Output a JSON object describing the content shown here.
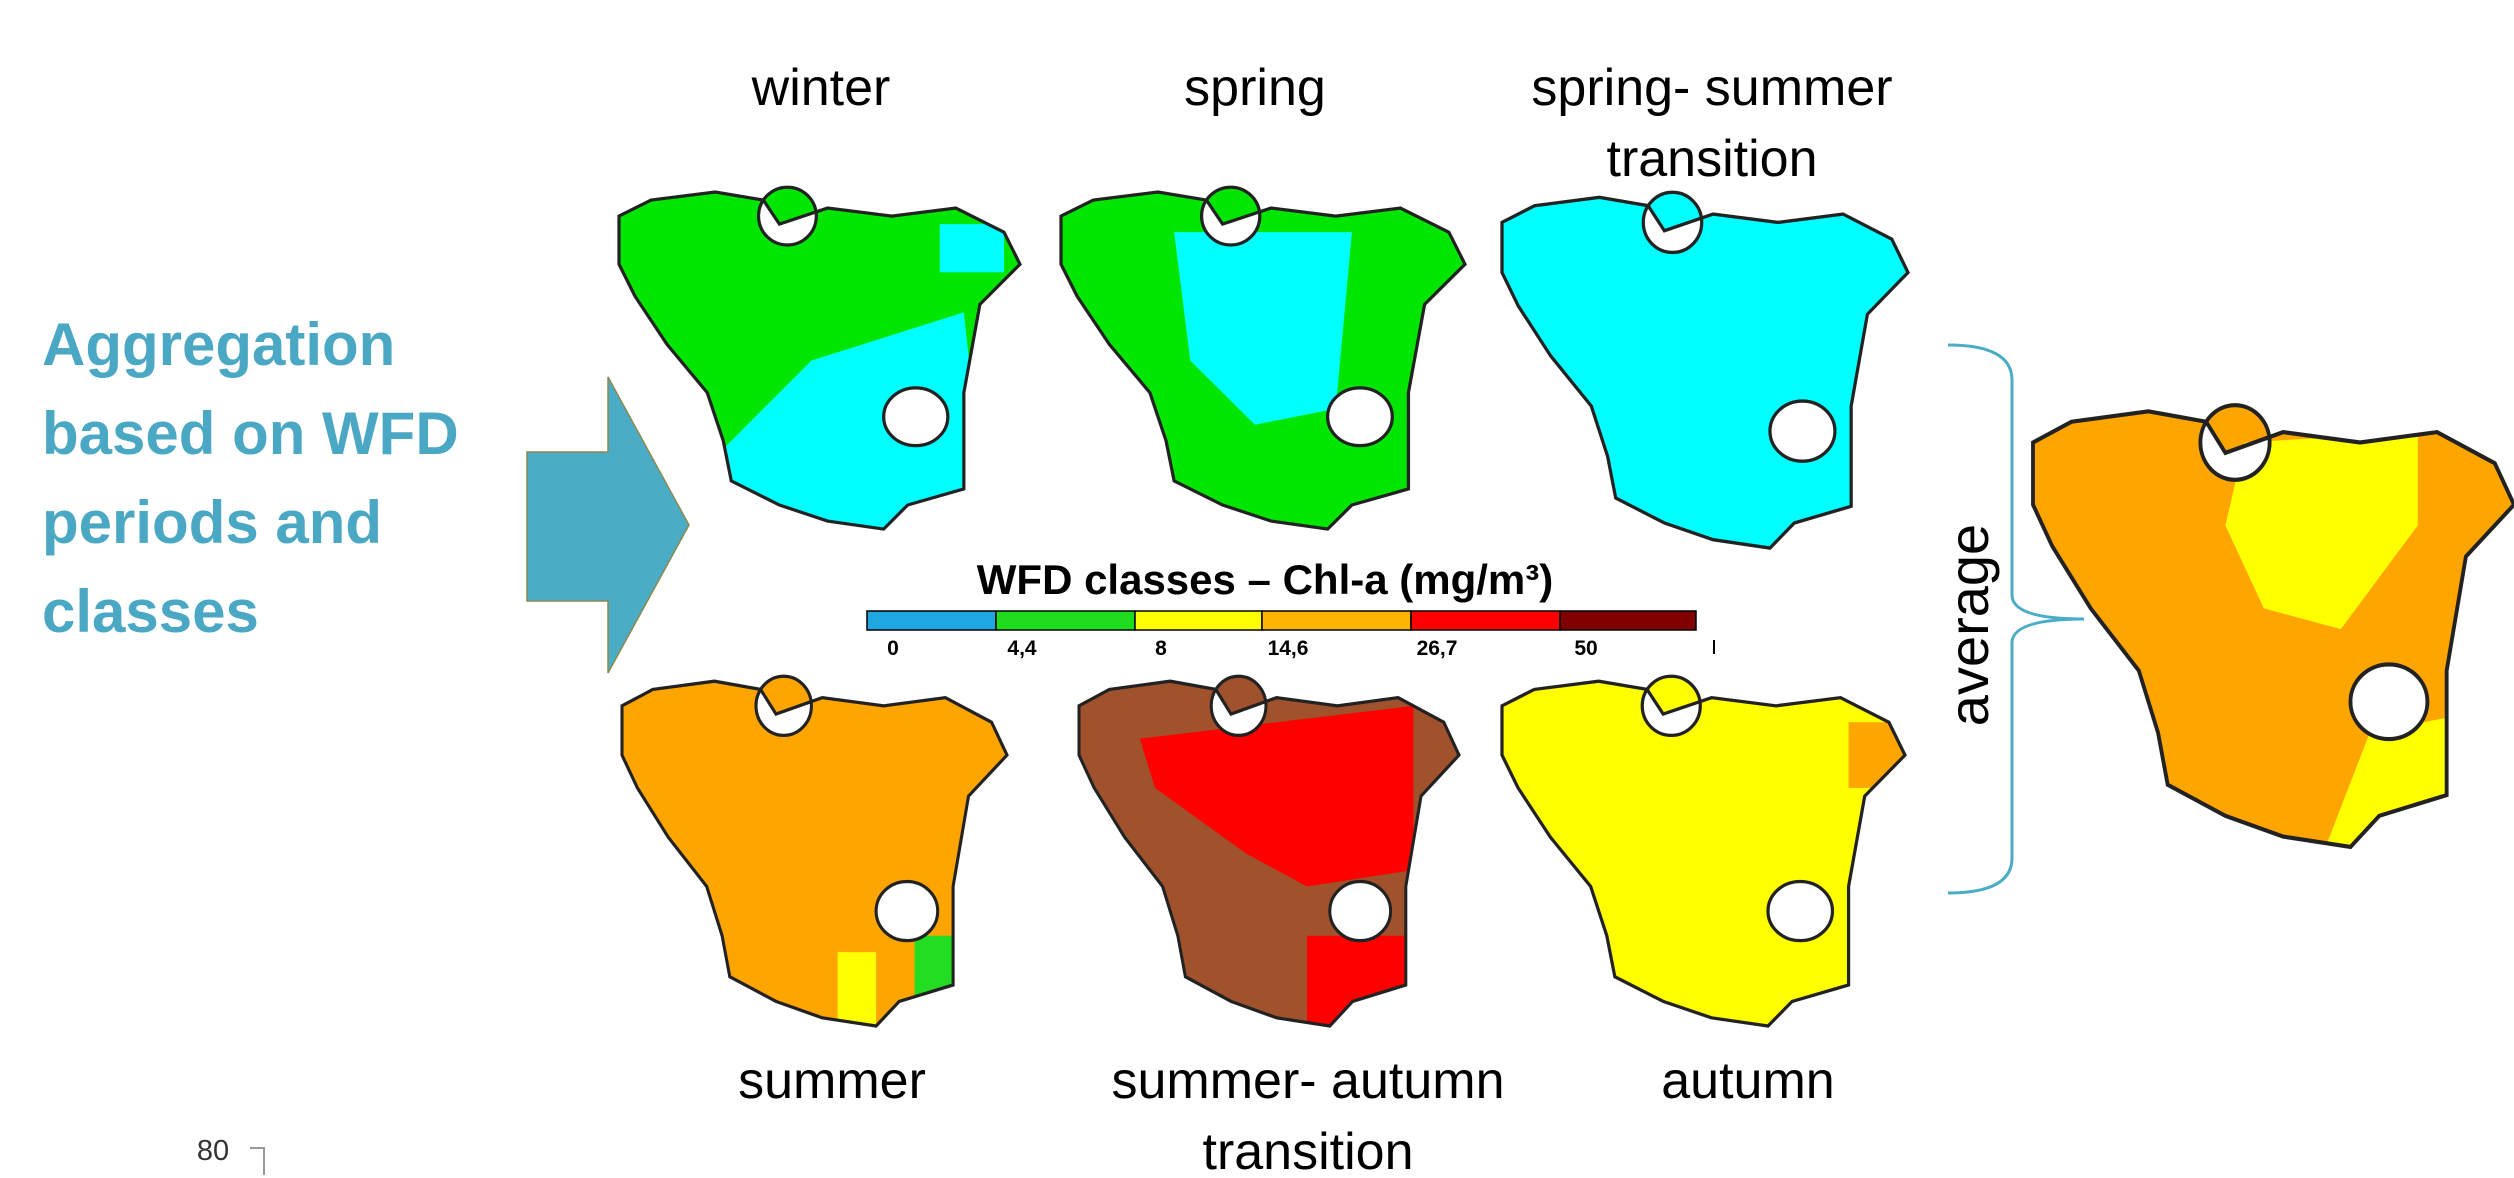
{
  "heading": [
    "Aggregation",
    "based on WFD",
    "periods and",
    "classes"
  ],
  "maps": [
    {
      "label": [
        "winter"
      ]
    },
    {
      "label": [
        "spring"
      ]
    },
    {
      "label": [
        "spring- summer",
        "transition"
      ]
    },
    {
      "label": [
        "summer"
      ]
    },
    {
      "label": [
        "summer- autumn",
        "transition"
      ]
    },
    {
      "label": [
        "autumn"
      ]
    }
  ],
  "legend": {
    "title": "WFD classes – Chl-a (mg/m³)",
    "classes": [
      {
        "color": "#1ea7e1",
        "label": "0"
      },
      {
        "color": "#1fdc1f",
        "label": "4,4"
      },
      {
        "color": "#ffff00",
        "label": "8"
      },
      {
        "color": "#ffb400",
        "label": "14,6"
      },
      {
        "color": "#ff0000",
        "label": "26,7"
      },
      {
        "color": "#800000",
        "label": "50"
      }
    ]
  },
  "average_label": "average",
  "page_number": "80"
}
